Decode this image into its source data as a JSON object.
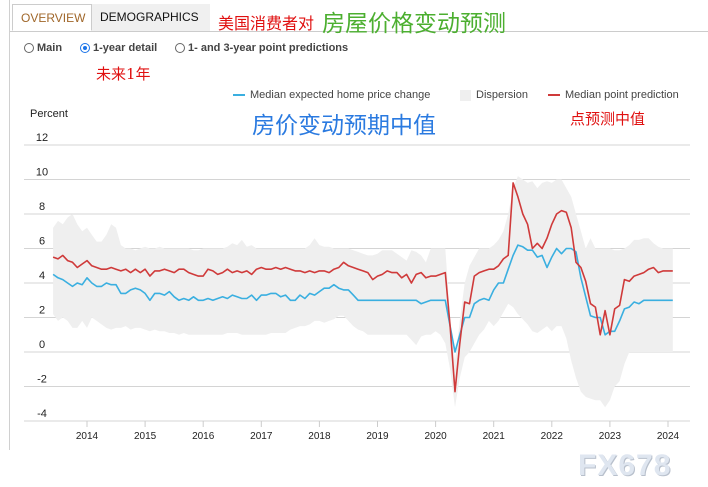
{
  "tabs": [
    {
      "label": "OVERVIEW",
      "active": true
    },
    {
      "label": "DEMOGRAPHICS",
      "active": false
    }
  ],
  "annotations": {
    "title_red": "美国消费者对",
    "title_green": "房屋价格变动预测",
    "one_year": "未来1年",
    "median_label": "房价变动预期中值",
    "point_label": "点预测中值"
  },
  "radios": [
    {
      "label": "Main",
      "checked": false
    },
    {
      "label": "1-year detail",
      "checked": true
    },
    {
      "label": "1- and 3-year point predictions",
      "checked": false
    }
  ],
  "watermark": "FX678",
  "chart_data": {
    "type": "line",
    "ylabel": "Percent",
    "ylim": [
      -4,
      12
    ],
    "yticks": [
      "12",
      "10",
      "8",
      "6",
      "4",
      "2",
      "0",
      "-2",
      "-4"
    ],
    "xticks": [
      "2014",
      "2015",
      "2016",
      "2017",
      "2018",
      "2019",
      "2020",
      "2021",
      "2022",
      "2023",
      "2024"
    ],
    "grid": true,
    "legend_placement": "top-right",
    "x_start": "2013-06",
    "x_end": "2024-02",
    "frequency": "monthly",
    "colors": {
      "median": "#3aafe0",
      "point": "#cf3a3a",
      "dispersion": "#efefef"
    },
    "legend": [
      {
        "label": "Median expected home price change"
      },
      {
        "label": "Dispersion"
      },
      {
        "label": "Median point prediction"
      }
    ],
    "series": [
      {
        "name": "Median expected home price change",
        "values": [
          4.5,
          4.3,
          4.2,
          4.0,
          3.8,
          4.0,
          3.9,
          4.3,
          4.0,
          3.8,
          3.8,
          4.0,
          3.9,
          3.9,
          3.4,
          3.4,
          3.6,
          3.7,
          3.6,
          3.4,
          3.0,
          3.4,
          3.4,
          3.3,
          3.5,
          3.2,
          3.0,
          3.1,
          3.0,
          3.2,
          3.0,
          3.0,
          3.1,
          3.0,
          3.1,
          3.2,
          3.1,
          3.3,
          3.2,
          3.1,
          3.1,
          3.3,
          3.0,
          3.3,
          3.3,
          3.4,
          3.4,
          3.2,
          3.3,
          3.0,
          3.0,
          3.3,
          3.1,
          3.4,
          3.3,
          3.5,
          3.7,
          3.7,
          3.9,
          3.7,
          3.6,
          3.6,
          3.3,
          3.0,
          3.0,
          3.0,
          3.0,
          3.0,
          3.0,
          3.0,
          3.0,
          3.0,
          3.0,
          3.0,
          3.0,
          3.0,
          2.8,
          2.9,
          3.0,
          3.0,
          3.0,
          3.0,
          1.5,
          0.0,
          1.0,
          2.0,
          2.0,
          2.8,
          3.0,
          3.1,
          3.0,
          3.6,
          4.0,
          4.0,
          4.8,
          5.6,
          6.2,
          6.1,
          5.9,
          5.9,
          5.5,
          5.6,
          4.9,
          5.5,
          6.0,
          5.7,
          6.0,
          6.0,
          5.8,
          4.3,
          3.2,
          2.1,
          2.0,
          2.0,
          1.0,
          1.2,
          1.2,
          1.8,
          2.5,
          2.6,
          2.9,
          2.8,
          3.0,
          3.0,
          3.0,
          3.0,
          3.0,
          3.0,
          3.0
        ]
      },
      {
        "name": "Median point prediction",
        "values": [
          5.5,
          5.4,
          5.6,
          5.3,
          5.2,
          4.9,
          5.1,
          5.3,
          5.0,
          4.9,
          4.8,
          4.8,
          4.9,
          4.8,
          4.7,
          4.8,
          4.6,
          4.8,
          4.6,
          4.8,
          4.4,
          4.7,
          4.7,
          4.8,
          4.7,
          4.6,
          4.8,
          4.8,
          4.6,
          4.5,
          4.4,
          4.4,
          4.8,
          4.7,
          4.5,
          4.6,
          4.8,
          4.6,
          4.7,
          4.6,
          4.7,
          4.5,
          4.8,
          4.9,
          4.8,
          4.8,
          4.9,
          4.8,
          4.9,
          4.8,
          4.7,
          4.7,
          4.6,
          4.7,
          4.6,
          4.7,
          4.7,
          4.6,
          4.8,
          4.9,
          5.2,
          5.0,
          4.9,
          4.8,
          4.7,
          4.6,
          4.2,
          4.4,
          4.5,
          4.7,
          4.6,
          4.6,
          4.3,
          4.5,
          4.0,
          4.5,
          4.6,
          4.3,
          4.4,
          4.4,
          4.5,
          4.6,
          1.5,
          -2.3,
          0.5,
          2.9,
          2.8,
          4.4,
          4.6,
          4.7,
          4.8,
          4.8,
          5.0,
          5.4,
          5.6,
          9.8,
          9.0,
          8.0,
          7.4,
          6.0,
          6.3,
          6.0,
          6.6,
          7.4,
          8.0,
          8.2,
          8.1,
          7.2,
          5.2,
          4.9,
          4.1,
          2.8,
          2.6,
          1.0,
          2.4,
          1.0,
          2.5,
          2.7,
          4.2,
          4.1,
          4.4,
          4.5,
          4.6,
          4.8,
          4.9,
          4.6,
          4.7,
          4.7,
          4.7
        ]
      },
      {
        "name": "Dispersion",
        "high": [
          7.2,
          7.6,
          7.4,
          7.8,
          8.0,
          7.4,
          7.0,
          7.2,
          6.8,
          6.4,
          6.4,
          6.8,
          7.4,
          7.2,
          6.2,
          6.0,
          6.0,
          5.9,
          6.0,
          6.1,
          6.0,
          6.0,
          6.1,
          6.0,
          6.0,
          6.0,
          6.0,
          6.0,
          6.0,
          5.9,
          5.9,
          6.0,
          6.0,
          6.0,
          6.0,
          6.0,
          6.1,
          6.3,
          6.2,
          6.5,
          6.1,
          6.2,
          6.0,
          6.0,
          6.0,
          6.0,
          6.0,
          6.0,
          6.0,
          6.0,
          6.0,
          6.0,
          6.0,
          6.2,
          6.6,
          6.2,
          6.1,
          6.1,
          6.0,
          6.0,
          6.0,
          6.0,
          5.9,
          5.8,
          5.7,
          5.6,
          5.6,
          5.7,
          5.9,
          5.9,
          5.9,
          5.7,
          5.5,
          5.3,
          5.9,
          5.8,
          5.6,
          5.2,
          6.0,
          6.0,
          6.0,
          6.0,
          2.0,
          -0.5,
          1.8,
          4.0,
          5.0,
          5.5,
          6.0,
          6.0,
          6.0,
          6.2,
          6.5,
          7.0,
          8.0,
          9.5,
          10.2,
          10.0,
          9.8,
          9.9,
          9.5,
          9.8,
          9.9,
          9.8,
          10.0,
          10.0,
          9.5,
          9.0,
          8.0,
          7.0,
          6.0,
          6.6,
          6.0,
          6.0,
          6.0,
          6.0,
          5.9,
          5.9,
          6.0,
          6.2,
          6.5,
          6.5,
          6.6,
          6.6,
          6.3,
          6.1,
          6.0,
          6.0,
          6.0
        ],
        "low": [
          2.2,
          1.8,
          2.0,
          1.8,
          1.4,
          1.4,
          1.8,
          1.4,
          2.0,
          1.8,
          1.6,
          1.4,
          1.3,
          1.4,
          1.4,
          1.5,
          1.3,
          1.4,
          1.4,
          1.3,
          1.2,
          1.3,
          1.2,
          1.2,
          1.1,
          1.1,
          1.0,
          1.1,
          1.0,
          1.0,
          1.0,
          1.0,
          1.0,
          1.0,
          1.0,
          1.0,
          1.1,
          1.1,
          1.1,
          1.0,
          1.0,
          1.0,
          1.0,
          1.0,
          1.0,
          1.1,
          1.1,
          1.1,
          1.1,
          1.3,
          1.4,
          1.5,
          1.5,
          1.6,
          1.8,
          1.8,
          1.7,
          1.8,
          1.9,
          2.1,
          2.1,
          1.8,
          1.5,
          1.3,
          1.2,
          1.0,
          1.0,
          1.0,
          1.0,
          1.0,
          1.0,
          1.0,
          1.0,
          1.0,
          0.7,
          0.4,
          0.9,
          1.0,
          1.0,
          1.2,
          1.0,
          0.5,
          -1.0,
          -3.2,
          -1.5,
          -0.3,
          0.0,
          0.5,
          1.0,
          1.3,
          1.8,
          1.5,
          1.8,
          2.3,
          2.8,
          2.6,
          2.2,
          1.9,
          1.6,
          1.2,
          1.1,
          1.3,
          1.5,
          1.2,
          1.5,
          1.5,
          0.8,
          -0.5,
          -1.5,
          -2.3,
          -2.6,
          -2.7,
          -2.8,
          -2.8,
          -3.2,
          -2.8,
          -2.0,
          -1.7,
          -0.7,
          0.0,
          0.0,
          0.0,
          0.0,
          0.0,
          0.0,
          0.0,
          0.0,
          0.0,
          0.0
        ]
      }
    ]
  }
}
